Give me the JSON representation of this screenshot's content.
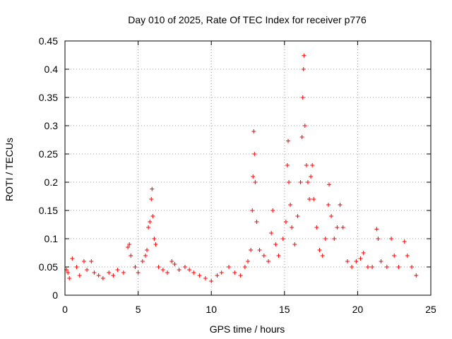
{
  "chart_data": {
    "type": "scatter",
    "title": "Day 010 of 2025, Rate Of TEC Index for receiver p776",
    "xlabel": "GPS time / hours",
    "ylabel": "ROTI / TECUs",
    "xlim": [
      0,
      25
    ],
    "ylim": [
      0,
      0.45
    ],
    "xticks": [
      0,
      5,
      10,
      15,
      20,
      25
    ],
    "yticks": [
      0,
      0.05,
      0.1,
      0.15,
      0.2,
      0.25,
      0.3,
      0.35,
      0.4,
      0.45
    ],
    "xtick_labels": [
      "0",
      "5",
      "10",
      "15",
      "20",
      "25"
    ],
    "ytick_labels": [
      "0",
      "0.05",
      "0.1",
      "0.15",
      "0.2",
      "0.25",
      "0.3",
      "0.35",
      "0.4",
      "0.45"
    ],
    "grid": true,
    "marker": "+",
    "color": "#ff0000",
    "series": [
      {
        "name": "ROTI",
        "points": [
          [
            0.1,
            0.045
          ],
          [
            0.2,
            0.04
          ],
          [
            0.3,
            0.03
          ],
          [
            0.5,
            0.065
          ],
          [
            0.8,
            0.05
          ],
          [
            1.0,
            0.035
          ],
          [
            1.3,
            0.06
          ],
          [
            1.5,
            0.045
          ],
          [
            1.8,
            0.06
          ],
          [
            2.0,
            0.04
          ],
          [
            2.3,
            0.035
          ],
          [
            2.6,
            0.03
          ],
          [
            3.0,
            0.04
          ],
          [
            3.3,
            0.035
          ],
          [
            3.6,
            0.045
          ],
          [
            4.0,
            0.04
          ],
          [
            4.3,
            0.085
          ],
          [
            4.4,
            0.09
          ],
          [
            4.5,
            0.07
          ],
          [
            4.8,
            0.05
          ],
          [
            5.0,
            0.04
          ],
          [
            5.3,
            0.06
          ],
          [
            5.5,
            0.07
          ],
          [
            5.6,
            0.08
          ],
          [
            5.7,
            0.12
          ],
          [
            5.8,
            0.13
          ],
          [
            5.9,
            0.17
          ],
          [
            5.95,
            0.188
          ],
          [
            6.0,
            0.14
          ],
          [
            6.1,
            0.1
          ],
          [
            6.2,
            0.09
          ],
          [
            6.4,
            0.05
          ],
          [
            6.7,
            0.045
          ],
          [
            7.0,
            0.04
          ],
          [
            7.3,
            0.06
          ],
          [
            7.5,
            0.055
          ],
          [
            7.8,
            0.045
          ],
          [
            8.2,
            0.05
          ],
          [
            8.5,
            0.045
          ],
          [
            8.8,
            0.04
          ],
          [
            9.2,
            0.035
          ],
          [
            9.6,
            0.03
          ],
          [
            10.0,
            0.025
          ],
          [
            10.4,
            0.035
          ],
          [
            10.7,
            0.04
          ],
          [
            11.2,
            0.05
          ],
          [
            11.6,
            0.04
          ],
          [
            12.0,
            0.035
          ],
          [
            12.3,
            0.05
          ],
          [
            12.5,
            0.06
          ],
          [
            12.7,
            0.08
          ],
          [
            12.8,
            0.15
          ],
          [
            12.85,
            0.21
          ],
          [
            12.9,
            0.29
          ],
          [
            12.95,
            0.25
          ],
          [
            13.0,
            0.2
          ],
          [
            13.1,
            0.13
          ],
          [
            13.3,
            0.08
          ],
          [
            13.6,
            0.07
          ],
          [
            13.9,
            0.06
          ],
          [
            14.1,
            0.11
          ],
          [
            14.2,
            0.15
          ],
          [
            14.4,
            0.09
          ],
          [
            14.6,
            0.07
          ],
          [
            14.9,
            0.1
          ],
          [
            15.1,
            0.13
          ],
          [
            15.2,
            0.23
          ],
          [
            15.25,
            0.273
          ],
          [
            15.3,
            0.2
          ],
          [
            15.4,
            0.16
          ],
          [
            15.5,
            0.12
          ],
          [
            15.7,
            0.09
          ],
          [
            15.9,
            0.14
          ],
          [
            16.1,
            0.2
          ],
          [
            16.2,
            0.28
          ],
          [
            16.25,
            0.35
          ],
          [
            16.3,
            0.4
          ],
          [
            16.33,
            0.424
          ],
          [
            16.4,
            0.3
          ],
          [
            16.5,
            0.23
          ],
          [
            16.6,
            0.2
          ],
          [
            16.7,
            0.17
          ],
          [
            16.8,
            0.21
          ],
          [
            16.9,
            0.23
          ],
          [
            17.0,
            0.17
          ],
          [
            17.2,
            0.12
          ],
          [
            17.4,
            0.08
          ],
          [
            17.6,
            0.07
          ],
          [
            17.8,
            0.1
          ],
          [
            18.0,
            0.16
          ],
          [
            18.05,
            0.196
          ],
          [
            18.2,
            0.14
          ],
          [
            18.4,
            0.1
          ],
          [
            18.6,
            0.12
          ],
          [
            18.8,
            0.16
          ],
          [
            19.0,
            0.12
          ],
          [
            19.3,
            0.06
          ],
          [
            19.6,
            0.05
          ],
          [
            19.9,
            0.06
          ],
          [
            20.2,
            0.065
          ],
          [
            20.4,
            0.075
          ],
          [
            20.7,
            0.05
          ],
          [
            21.0,
            0.05
          ],
          [
            21.3,
            0.117
          ],
          [
            21.4,
            0.1
          ],
          [
            21.6,
            0.06
          ],
          [
            22.0,
            0.05
          ],
          [
            22.3,
            0.1
          ],
          [
            22.5,
            0.07
          ],
          [
            22.8,
            0.05
          ],
          [
            23.2,
            0.095
          ],
          [
            23.4,
            0.07
          ],
          [
            23.7,
            0.05
          ],
          [
            24.0,
            0.035
          ]
        ]
      }
    ]
  }
}
